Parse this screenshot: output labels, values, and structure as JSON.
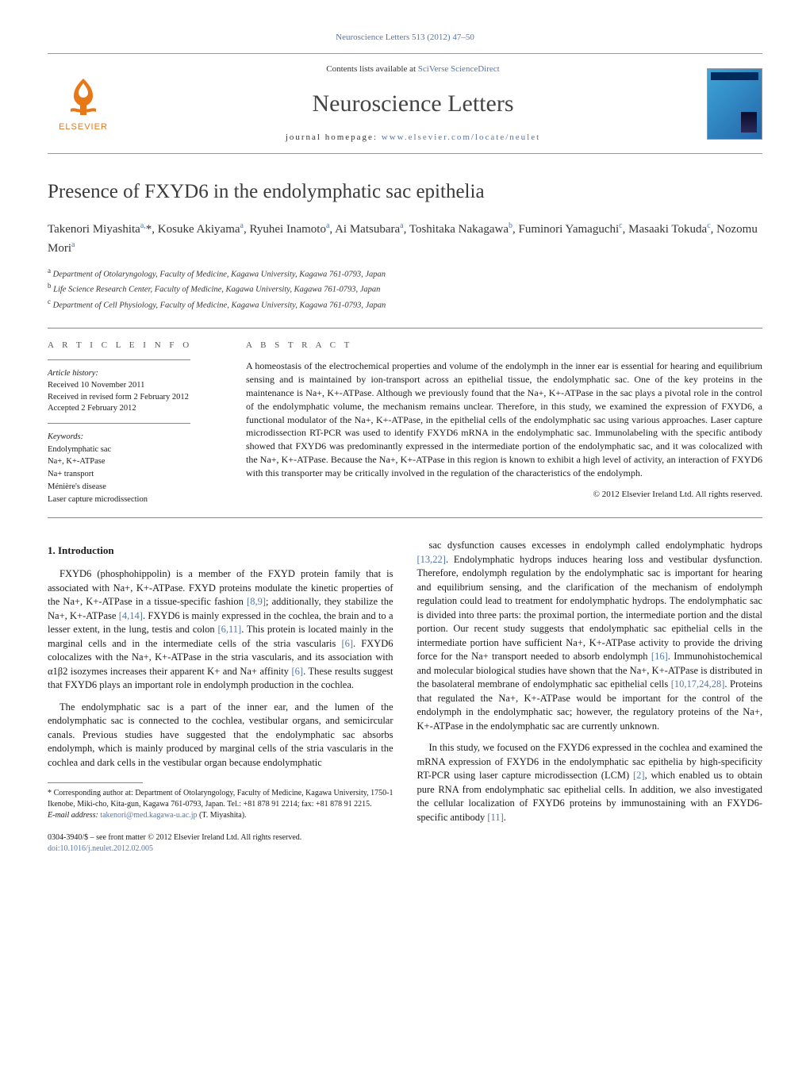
{
  "journal_header": "Neuroscience Letters 513 (2012) 47–50",
  "masthead": {
    "contents_prefix": "Contents lists available at ",
    "contents_link": "SciVerse ScienceDirect",
    "journal_title": "Neuroscience Letters",
    "homepage_prefix": "journal homepage: ",
    "homepage_url": "www.elsevier.com/locate/neulet",
    "elsevier_label": "ELSEVIER",
    "logo_color": "#e67817",
    "cover_gradient_from": "#3fa5d8",
    "cover_gradient_to": "#2266aa"
  },
  "article": {
    "title": "Presence of FXYD6 in the endolymphatic sac epithelia",
    "authors_html": "Takenori Miyashita<sup>a,</sup>*, Kosuke Akiyama<sup>a</sup>, Ryuhei Inamoto<sup>a</sup>, Ai Matsubara<sup>a</sup>, Toshitaka Nakagawa<sup>b</sup>, Fuminori Yamaguchi<sup>c</sup>, Masaaki Tokuda<sup>c</sup>, Nozomu Mori<sup>a</sup>",
    "affiliations": [
      {
        "sup": "a",
        "text": "Department of Otolaryngology, Faculty of Medicine, Kagawa University, Kagawa 761-0793, Japan"
      },
      {
        "sup": "b",
        "text": "Life Science Research Center, Faculty of Medicine, Kagawa University, Kagawa 761-0793, Japan"
      },
      {
        "sup": "c",
        "text": "Department of Cell Physiology, Faculty of Medicine, Kagawa University, Kagawa 761-0793, Japan"
      }
    ]
  },
  "info": {
    "section_label": "a r t i c l e   i n f o",
    "history_label": "Article history:",
    "history": [
      "Received 10 November 2011",
      "Received in revised form 2 February 2012",
      "Accepted 2 February 2012"
    ],
    "keywords_label": "Keywords:",
    "keywords": [
      "Endolymphatic sac",
      "Na+, K+-ATPase",
      "Na+ transport",
      "Ménière's disease",
      "Laser capture microdissection"
    ]
  },
  "abstract": {
    "section_label": "a b s t r a c t",
    "text": "A homeostasis of the electrochemical properties and volume of the endolymph in the inner ear is essential for hearing and equilibrium sensing and is maintained by ion-transport across an epithelial tissue, the endolymphatic sac. One of the key proteins in the maintenance is Na+, K+-ATPase. Although we previously found that the Na+, K+-ATPase in the sac plays a pivotal role in the control of the endolymphatic volume, the mechanism remains unclear. Therefore, in this study, we examined the expression of FXYD6, a functional modulator of the Na+, K+-ATPase, in the epithelial cells of the endolymphatic sac using various approaches. Laser capture microdissection RT-PCR was used to identify FXYD6 mRNA in the endolymphatic sac. Immunolabeling with the specific antibody showed that FXYD6 was predominantly expressed in the intermediate portion of the endolymphatic sac, and it was colocalized with the Na+, K+-ATPase. Because the Na+, K+-ATPase in this region is known to exhibit a high level of activity, an interaction of FXYD6 with this transporter may be critically involved in the regulation of the characteristics of the endolymph.",
    "copyright": "© 2012 Elsevier Ireland Ltd. All rights reserved."
  },
  "body": {
    "heading": "1.  Introduction",
    "left_paragraphs": [
      "FXYD6 (phosphohippolin) is a member of the FXYD protein family that is associated with Na+, K+-ATPase. FXYD proteins modulate the kinetic properties of the Na+, K+-ATPase in a tissue-specific fashion [8,9]; additionally, they stabilize the Na+, K+-ATPase [4,14]. FXYD6 is mainly expressed in the cochlea, the brain and to a lesser extent, in the lung, testis and colon [6,11]. This protein is located mainly in the marginal cells and in the intermediate cells of the stria vascularis [6]. FXYD6 colocalizes with the Na+, K+-ATPase in the stria vascularis, and its association with α1β2 isozymes increases their apparent K+ and Na+ affinity [6]. These results suggest that FXYD6 plays an important role in endolymph production in the cochlea.",
      "The endolymphatic sac is a part of the inner ear, and the lumen of the endolymphatic sac is connected to the cochlea, vestibular organs, and semicircular canals. Previous studies have suggested that the endolymphatic sac absorbs endolymph, which is mainly produced by marginal cells of the stria vascularis in the cochlea and dark cells in the vestibular organ because endolymphatic"
    ],
    "right_paragraphs": [
      "sac dysfunction causes excesses in endolymph called endolymphatic hydrops [13,22]. Endolymphatic hydrops induces hearing loss and vestibular dysfunction. Therefore, endolymph regulation by the endolymphatic sac is important for hearing and equilibrium sensing, and the clarification of the mechanism of endolymph regulation could lead to treatment for endolymphatic hydrops. The endolymphatic sac is divided into three parts: the proximal portion, the intermediate portion and the distal portion. Our recent study suggests that endolymphatic sac epithelial cells in the intermediate portion have sufficient Na+, K+-ATPase activity to provide the driving force for the Na+ transport needed to absorb endolymph [16]. Immunohistochemical and molecular biological studies have shown that the Na+, K+-ATPase is distributed in the basolateral membrane of endolymphatic sac epithelial cells [10,17,24,28]. Proteins that regulated the Na+, K+-ATPase would be important for the control of the endolymph in the endolymphatic sac; however, the regulatory proteins of the Na+, K+-ATPase in the endolymphatic sac are currently unknown.",
      "In this study, we focused on the FXYD6 expressed in the cochlea and examined the mRNA expression of FXYD6 in the endolymphatic sac epithelia by high-specificity RT-PCR using laser capture microdissection (LCM) [2], which enabled us to obtain pure RNA from endolymphatic sac epithelial cells. In addition, we also investigated the cellular localization of FXYD6 proteins by immunostaining with an FXYD6-specific antibody [11]."
    ]
  },
  "footnotes": {
    "corresponding": "* Corresponding author at: Department of Otolaryngology, Faculty of Medicine, Kagawa University, 1750-1 Ikenobe, Miki-cho, Kita-gun, Kagawa 761-0793, Japan. Tel.: +81 878 91 2214; fax: +81 878 91 2215.",
    "email_label": "E-mail address: ",
    "email": "takenori@med.kagawa-u.ac.jp",
    "email_suffix": " (T. Miyashita)."
  },
  "footer": {
    "line1": "0304-3940/$ – see front matter © 2012 Elsevier Ireland Ltd. All rights reserved.",
    "doi": "doi:10.1016/j.neulet.2012.02.005"
  },
  "colors": {
    "link": "#5577aa",
    "text": "#1a1a1a",
    "rule": "#888888"
  }
}
